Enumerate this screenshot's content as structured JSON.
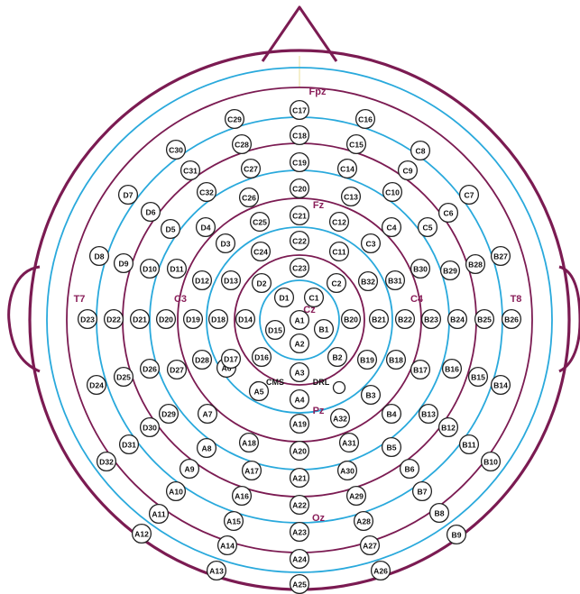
{
  "colors": {
    "head": "#7b1b52",
    "ring_blue": "#29a9dc",
    "ring_purple": "#7b1b52",
    "label": "#8a1f5a"
  },
  "position_labels": [
    "Fpz",
    "Fz",
    "Cz",
    "Pz",
    "Oz",
    "T7",
    "T8",
    "C3",
    "C4"
  ],
  "reference_labels": [
    "CMS",
    "DRL"
  ],
  "electrodes": [
    "A1",
    "A2",
    "A3",
    "A4",
    "A5",
    "A6",
    "A7",
    "A8",
    "A9",
    "A10",
    "A11",
    "A12",
    "A13",
    "A14",
    "A15",
    "A16",
    "A17",
    "A18",
    "A19",
    "A20",
    "A21",
    "A22",
    "A23",
    "A24",
    "A25",
    "A26",
    "A27",
    "A28",
    "A29",
    "A30",
    "A31",
    "A32",
    "B1",
    "B2",
    "B3",
    "B4",
    "B5",
    "B6",
    "B7",
    "B8",
    "B9",
    "B10",
    "B11",
    "B12",
    "B13",
    "B14",
    "B15",
    "B16",
    "B17",
    "B18",
    "B19",
    "B20",
    "B21",
    "B22",
    "B23",
    "B24",
    "B25",
    "B26",
    "B27",
    "B28",
    "B29",
    "B30",
    "B31",
    "B32",
    "C1",
    "C2",
    "C3",
    "C4",
    "C5",
    "C6",
    "C7",
    "C8",
    "C9",
    "C10",
    "C11",
    "C12",
    "C13",
    "C14",
    "C15",
    "C16",
    "C17",
    "C18",
    "C19",
    "C20",
    "C21",
    "C22",
    "C23",
    "C24",
    "C25",
    "C26",
    "C27",
    "C28",
    "C29",
    "C30",
    "C31",
    "C32",
    "D1",
    "D2",
    "D3",
    "D4",
    "D5",
    "D6",
    "D7",
    "D8",
    "D9",
    "D10",
    "D11",
    "D12",
    "D13",
    "D14",
    "D15",
    "D16",
    "D17",
    "D18",
    "D19",
    "D20",
    "D21",
    "D22",
    "D23",
    "D24",
    "D25",
    "D26",
    "D27",
    "D28",
    "D29",
    "D30",
    "D31",
    "D32"
  ]
}
